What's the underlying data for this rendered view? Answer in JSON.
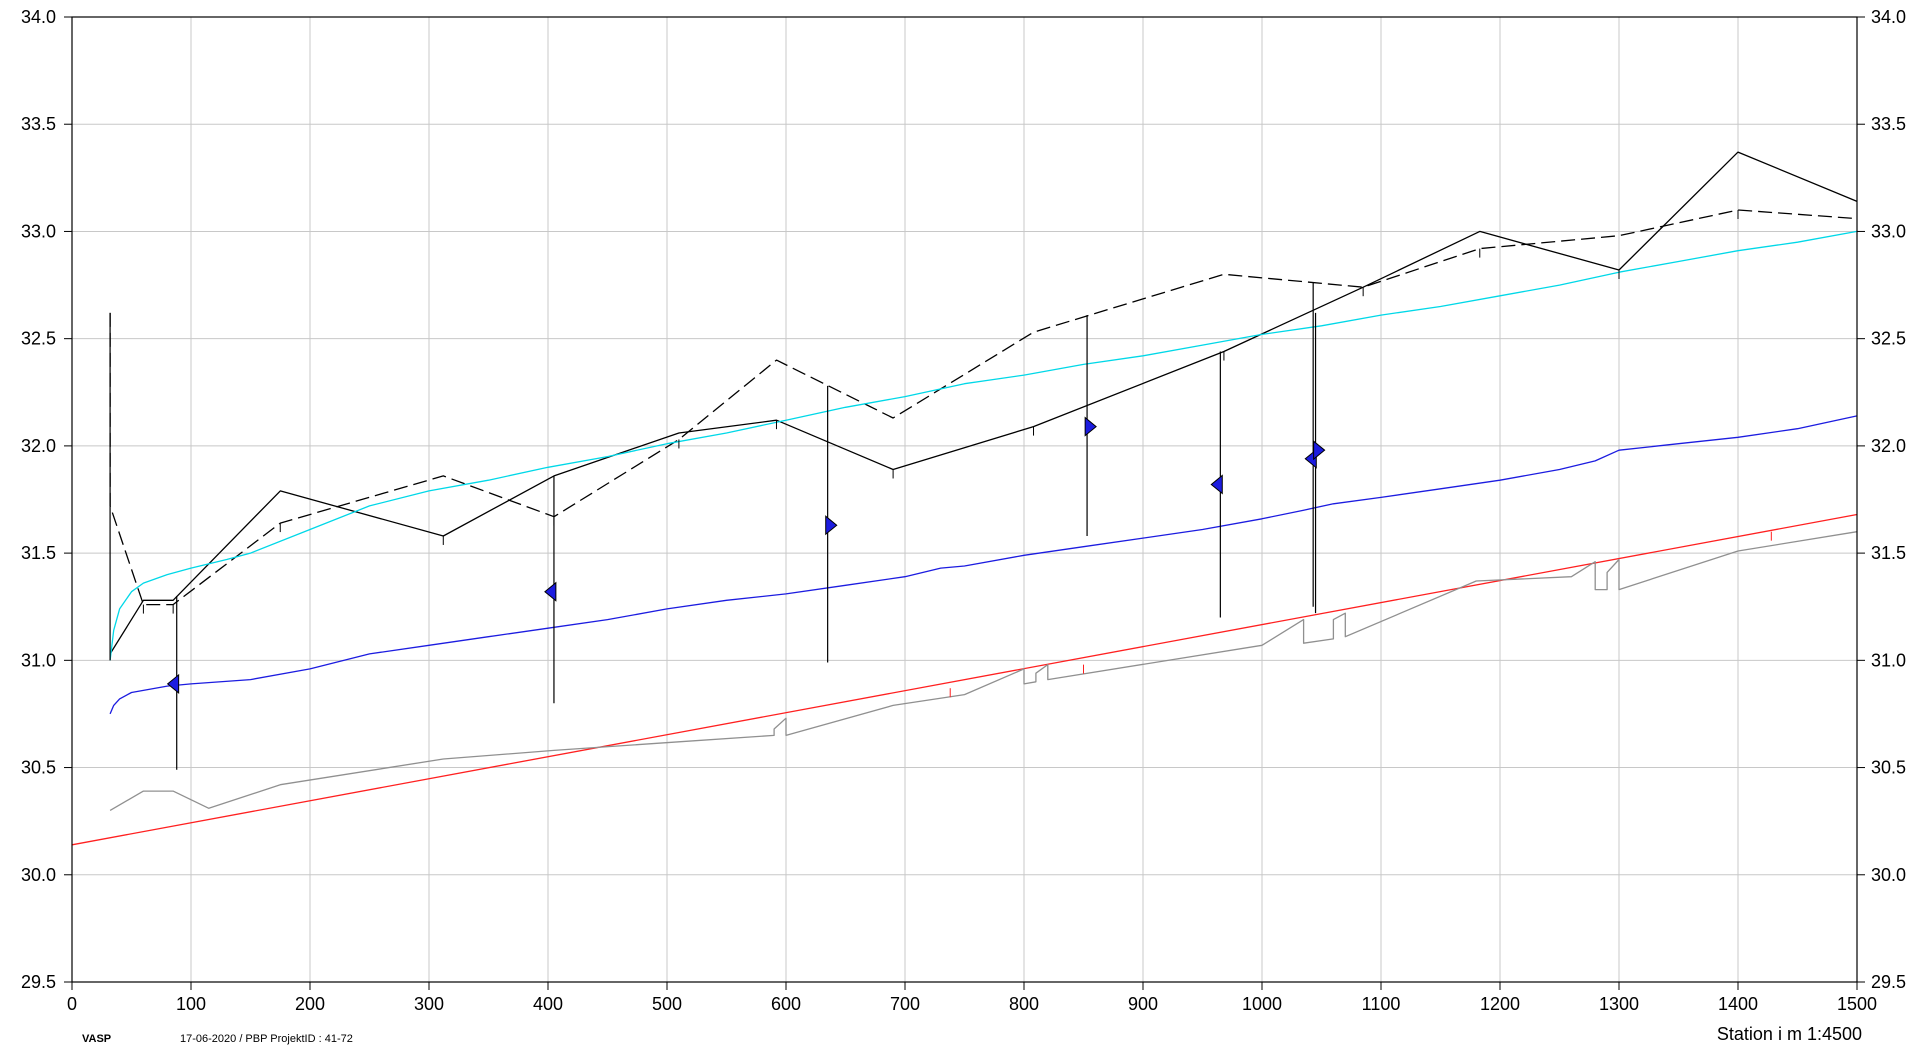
{
  "chart_data": {
    "type": "line",
    "title": "",
    "xlabel": "Station i m",
    "ylabel": "",
    "xlim": [
      0,
      1500
    ],
    "ylim": [
      29.5,
      34.0
    ],
    "x_ticks": [
      0,
      100,
      200,
      300,
      400,
      500,
      600,
      700,
      800,
      900,
      1000,
      1100,
      1200,
      1300,
      1400,
      1500
    ],
    "y_ticks": [
      29.5,
      30.0,
      30.5,
      31.0,
      31.5,
      32.0,
      32.5,
      33.0,
      33.5,
      34.0
    ],
    "grid": true,
    "series": [
      {
        "key": "terrain_solid",
        "color": "#000000",
        "dash": "solid",
        "points": [
          [
            32,
            31.03
          ],
          [
            60,
            31.28
          ],
          [
            85,
            31.28
          ],
          [
            175,
            31.79
          ],
          [
            312,
            31.58
          ],
          [
            405,
            31.86
          ],
          [
            510,
            32.06
          ],
          [
            592,
            32.12
          ],
          [
            690,
            31.89
          ],
          [
            808,
            32.09
          ],
          [
            968,
            32.44
          ],
          [
            1085,
            32.74
          ],
          [
            1183,
            33.0
          ],
          [
            1300,
            32.82
          ],
          [
            1400,
            33.37
          ],
          [
            1500,
            33.14
          ]
        ]
      },
      {
        "key": "terrain_dashed",
        "color": "#000000",
        "dash": "dashed",
        "points": [
          [
            32,
            32.62
          ],
          [
            32,
            31.72
          ],
          [
            60,
            31.26
          ],
          [
            85,
            31.26
          ],
          [
            175,
            31.64
          ],
          [
            312,
            31.86
          ],
          [
            405,
            31.67
          ],
          [
            510,
            32.03
          ],
          [
            592,
            32.4
          ],
          [
            690,
            32.13
          ],
          [
            808,
            32.53
          ],
          [
            968,
            32.8
          ],
          [
            1085,
            32.74
          ],
          [
            1183,
            32.92
          ],
          [
            1300,
            32.98
          ],
          [
            1400,
            33.1
          ],
          [
            1500,
            33.06
          ]
        ]
      },
      {
        "key": "cyan_line",
        "color": "#00d8e8",
        "dash": "solid",
        "points": [
          [
            32,
            31.0
          ],
          [
            35,
            31.14
          ],
          [
            40,
            31.24
          ],
          [
            50,
            31.32
          ],
          [
            60,
            31.36
          ],
          [
            80,
            31.4
          ],
          [
            100,
            31.43
          ],
          [
            130,
            31.47
          ],
          [
            150,
            31.5
          ],
          [
            200,
            31.61
          ],
          [
            250,
            31.72
          ],
          [
            300,
            31.79
          ],
          [
            350,
            31.84
          ],
          [
            400,
            31.9
          ],
          [
            450,
            31.95
          ],
          [
            500,
            32.01
          ],
          [
            550,
            32.06
          ],
          [
            600,
            32.12
          ],
          [
            650,
            32.18
          ],
          [
            700,
            32.23
          ],
          [
            750,
            32.29
          ],
          [
            800,
            32.33
          ],
          [
            850,
            32.38
          ],
          [
            900,
            32.42
          ],
          [
            950,
            32.47
          ],
          [
            1000,
            32.52
          ],
          [
            1050,
            32.56
          ],
          [
            1100,
            32.61
          ],
          [
            1150,
            32.65
          ],
          [
            1200,
            32.7
          ],
          [
            1250,
            32.75
          ],
          [
            1300,
            32.81
          ],
          [
            1350,
            32.86
          ],
          [
            1400,
            32.91
          ],
          [
            1450,
            32.95
          ],
          [
            1500,
            33.0
          ]
        ]
      },
      {
        "key": "blue_line",
        "color": "#1c1ce0",
        "dash": "solid",
        "points": [
          [
            32,
            30.75
          ],
          [
            35,
            30.79
          ],
          [
            40,
            30.82
          ],
          [
            50,
            30.85
          ],
          [
            60,
            30.86
          ],
          [
            80,
            30.88
          ],
          [
            100,
            30.89
          ],
          [
            150,
            30.91
          ],
          [
            200,
            30.96
          ],
          [
            250,
            31.03
          ],
          [
            300,
            31.07
          ],
          [
            350,
            31.11
          ],
          [
            400,
            31.15
          ],
          [
            450,
            31.19
          ],
          [
            500,
            31.24
          ],
          [
            550,
            31.28
          ],
          [
            600,
            31.31
          ],
          [
            650,
            31.35
          ],
          [
            700,
            31.39
          ],
          [
            730,
            31.43
          ],
          [
            750,
            31.44
          ],
          [
            800,
            31.49
          ],
          [
            850,
            31.53
          ],
          [
            900,
            31.57
          ],
          [
            950,
            31.61
          ],
          [
            1000,
            31.66
          ],
          [
            1035,
            31.7
          ],
          [
            1060,
            31.73
          ],
          [
            1100,
            31.76
          ],
          [
            1150,
            31.8
          ],
          [
            1200,
            31.84
          ],
          [
            1250,
            31.89
          ],
          [
            1280,
            31.93
          ],
          [
            1300,
            31.98
          ],
          [
            1350,
            32.01
          ],
          [
            1400,
            32.04
          ],
          [
            1450,
            32.08
          ],
          [
            1500,
            32.14
          ]
        ]
      },
      {
        "key": "red_line",
        "color": "#ff2020",
        "dash": "solid",
        "points": [
          [
            0,
            30.14
          ],
          [
            1500,
            31.68
          ]
        ]
      },
      {
        "key": "gray_line",
        "color": "#909090",
        "dash": "solid",
        "points": [
          [
            32,
            30.3
          ],
          [
            60,
            30.39
          ],
          [
            85,
            30.39
          ],
          [
            115,
            30.31
          ],
          [
            175,
            30.42
          ],
          [
            312,
            30.54
          ],
          [
            405,
            30.58
          ],
          [
            510,
            30.62
          ],
          [
            590,
            30.65
          ],
          [
            590,
            30.68
          ],
          [
            600,
            30.73
          ],
          [
            600,
            30.65
          ],
          [
            690,
            30.79
          ],
          [
            750,
            30.84
          ],
          [
            800,
            30.96
          ],
          [
            800,
            30.89
          ],
          [
            810,
            30.9
          ],
          [
            810,
            30.94
          ],
          [
            820,
            30.98
          ],
          [
            820,
            30.91
          ],
          [
            1000,
            31.07
          ],
          [
            1035,
            31.19
          ],
          [
            1035,
            31.08
          ],
          [
            1060,
            31.1
          ],
          [
            1060,
            31.19
          ],
          [
            1070,
            31.22
          ],
          [
            1070,
            31.11
          ],
          [
            1180,
            31.37
          ],
          [
            1260,
            31.39
          ],
          [
            1280,
            31.46
          ],
          [
            1280,
            31.33
          ],
          [
            1290,
            31.33
          ],
          [
            1290,
            31.41
          ],
          [
            1300,
            31.47
          ],
          [
            1300,
            31.33
          ],
          [
            1400,
            31.51
          ],
          [
            1500,
            31.6
          ]
        ]
      }
    ],
    "verticals": [
      {
        "x": 32,
        "y1": 31.0,
        "y2": 32.62
      },
      {
        "x": 88,
        "y1": 30.49,
        "y2": 31.3
      },
      {
        "x": 405,
        "y1": 30.8,
        "y2": 31.86
      },
      {
        "x": 635,
        "y1": 30.99,
        "y2": 32.28
      },
      {
        "x": 853,
        "y1": 31.58,
        "y2": 32.61
      },
      {
        "x": 965,
        "y1": 31.2,
        "y2": 32.44
      },
      {
        "x": 1043,
        "y1": 31.25,
        "y2": 32.76
      },
      {
        "x": 1045,
        "y1": 31.22,
        "y2": 32.62
      }
    ],
    "markers": [
      {
        "x": 85,
        "y": 30.89,
        "dir": "left"
      },
      {
        "x": 402,
        "y": 31.32,
        "dir": "left"
      },
      {
        "x": 638,
        "y": 31.63,
        "dir": "right"
      },
      {
        "x": 856,
        "y": 32.09,
        "dir": "right"
      },
      {
        "x": 962,
        "y": 31.82,
        "dir": "left"
      },
      {
        "x": 1041,
        "y": 31.94,
        "dir": "left"
      },
      {
        "x": 1048,
        "y": 31.98,
        "dir": "right"
      }
    ],
    "ticks_black": [
      [
        60,
        31.26
      ],
      [
        85,
        31.26
      ],
      [
        175,
        31.64
      ],
      [
        312,
        31.58
      ],
      [
        405,
        31.67
      ],
      [
        510,
        32.03
      ],
      [
        592,
        32.12
      ],
      [
        690,
        31.89
      ],
      [
        808,
        32.09
      ],
      [
        968,
        32.44
      ],
      [
        1085,
        32.74
      ],
      [
        1183,
        32.92
      ],
      [
        1300,
        32.82
      ],
      [
        1400,
        33.1
      ]
    ],
    "ticks_red": [
      [
        738,
        30.87
      ],
      [
        850,
        30.98
      ],
      [
        1428,
        31.6
      ]
    ],
    "blue_color": "#1c1ce0",
    "grid_color": "#c8c8c8"
  },
  "footer": {
    "software": "VASP",
    "info": "17-06-2020 / PBP   ProjektID : 41-72",
    "axis_title": "Station i m  1:4500"
  }
}
